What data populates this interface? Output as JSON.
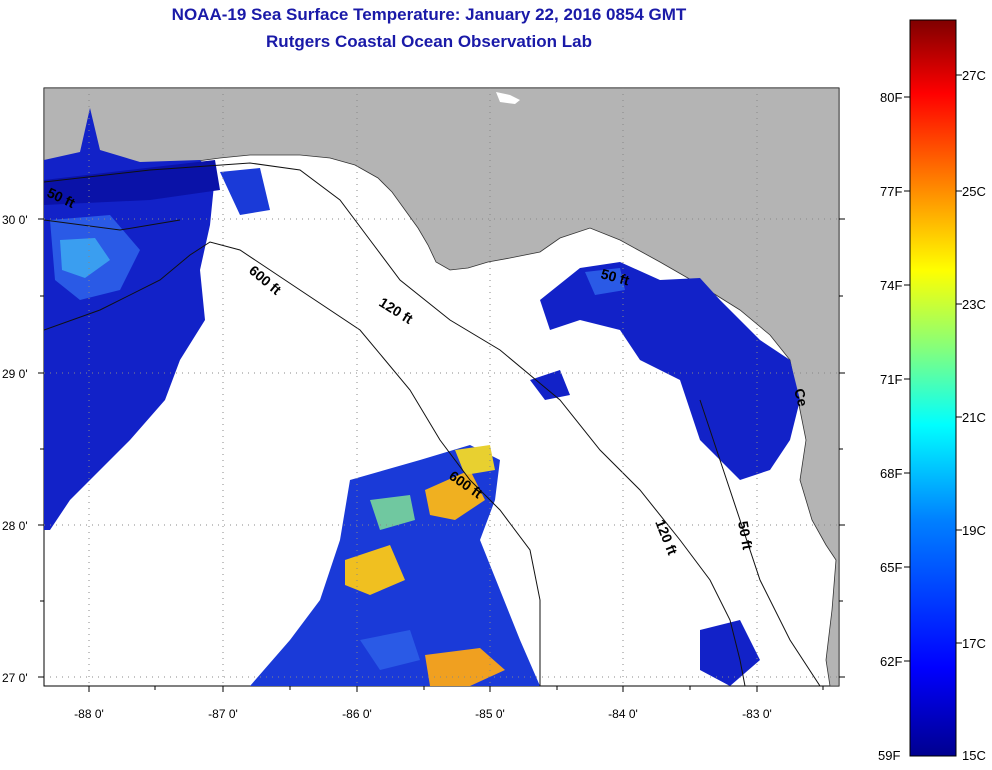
{
  "header": {
    "title": "NOAA-19 Sea Surface Temperature:  January 22, 2016 0854 GMT",
    "subtitle": "Rutgers Coastal Ocean Observation Lab"
  },
  "map": {
    "lat_labels": [
      "30 0'",
      "29 0'",
      "28 0'",
      "27 0'"
    ],
    "lon_labels": [
      "-88 0'",
      "-87 0'",
      "-86 0'",
      "-85 0'",
      "-84 0'",
      "-83 0'"
    ],
    "contour_labels": [
      "50 ft",
      "600 ft",
      "120 ft",
      "50 ft",
      "600 ft",
      "120 ft",
      "50 ft",
      "Ce"
    ],
    "land_color": "#b4b4b4",
    "water_color": "#ffffff"
  },
  "colorbar": {
    "f_labels": [
      "80F",
      "77F",
      "74F",
      "71F",
      "68F",
      "65F",
      "62F",
      "59F"
    ],
    "c_labels": [
      "27C",
      "25C",
      "23C",
      "21C",
      "19C",
      "17C",
      "15C"
    ],
    "colors": [
      "#7f0000",
      "#ff0000",
      "#ff8000",
      "#ffff00",
      "#80ff80",
      "#00ffff",
      "#0080ff",
      "#0000ff",
      "#00008f"
    ]
  }
}
